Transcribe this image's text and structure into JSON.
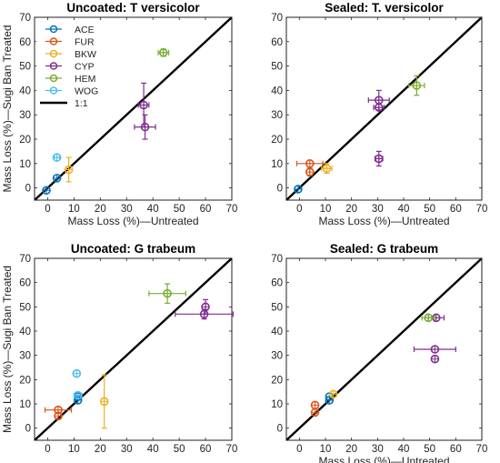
{
  "figure": {
    "ylabel": "Mass Loss (%)—Sugi Ban Treated",
    "xlabel": "Mass Loss (%)—Untreated"
  },
  "series_colors": {
    "ACE": "#0072BD",
    "FUR": "#D95319",
    "BKW": "#EDB120",
    "CYP": "#7E2F8E",
    "HEM": "#77AC30",
    "WOG": "#4DBEEE",
    "1:1": "#000000"
  },
  "legend": [
    "ACE",
    "FUR",
    "BKW",
    "CYP",
    "HEM",
    "WOG",
    "1:1"
  ],
  "chart_data": [
    {
      "type": "scatter",
      "title": "Uncoated: T versicolor",
      "xlim": [
        -5,
        70
      ],
      "ylim": [
        -5,
        70
      ],
      "xticks": [
        0,
        10,
        20,
        30,
        40,
        50,
        60,
        70
      ],
      "yticks": [
        0,
        10,
        20,
        30,
        40,
        50,
        60,
        70
      ],
      "reference_line": "1:1",
      "show_legend": true,
      "show_ylabel": true,
      "show_xlabel": true,
      "series": [
        {
          "name": "ACE",
          "points": [
            {
              "x": -0.5,
              "y": -1
            },
            {
              "x": 3.5,
              "y": 4
            }
          ]
        },
        {
          "name": "FUR",
          "points": []
        },
        {
          "name": "BKW",
          "points": [
            {
              "x": 8,
              "y": 7.5,
              "yerr": 5
            }
          ]
        },
        {
          "name": "CYP",
          "points": [
            {
              "x": 36.5,
              "y": 34,
              "xerr": 2,
              "yerr": 9
            },
            {
              "x": 37,
              "y": 25,
              "xerr": 4,
              "yerr": 5
            }
          ]
        },
        {
          "name": "HEM",
          "points": [
            {
              "x": 44,
              "y": 55.5,
              "xerr": 2,
              "yerr": 1.5
            }
          ]
        },
        {
          "name": "WOG",
          "points": [
            {
              "x": 3.5,
              "y": 12.5,
              "xerr": 1
            }
          ]
        }
      ]
    },
    {
      "type": "scatter",
      "title": "Sealed: T. versicolor",
      "xlim": [
        -5,
        70
      ],
      "ylim": [
        -5,
        70
      ],
      "xticks": [
        0,
        10,
        20,
        30,
        40,
        50,
        60,
        70
      ],
      "yticks": [
        0,
        10,
        20,
        30,
        40,
        50,
        60,
        70
      ],
      "reference_line": "1:1",
      "show_legend": false,
      "show_ylabel": false,
      "show_xlabel": true,
      "series": [
        {
          "name": "ACE",
          "points": [
            {
              "x": -0.5,
              "y": -0.5
            }
          ]
        },
        {
          "name": "FUR",
          "points": [
            {
              "x": 4,
              "y": 10,
              "xerr": 5
            },
            {
              "x": 4,
              "y": 6.5,
              "yerr": 1.5
            }
          ]
        },
        {
          "name": "BKW",
          "points": [
            {
              "x": 10.5,
              "y": 8,
              "xerr": 2,
              "yerr": 2
            }
          ]
        },
        {
          "name": "CYP",
          "points": [
            {
              "x": 30.5,
              "y": 36,
              "xerr": 4,
              "yerr": 4
            },
            {
              "x": 30.5,
              "y": 33,
              "xerr": 2
            },
            {
              "x": 30.5,
              "y": 12,
              "xerr": 1.5,
              "yerr": 3
            }
          ]
        },
        {
          "name": "HEM",
          "points": [
            {
              "x": 45,
              "y": 42,
              "xerr": 3,
              "yerr": 4
            }
          ]
        },
        {
          "name": "WOG",
          "points": []
        }
      ]
    },
    {
      "type": "scatter",
      "title": "Uncoated: G trabeum",
      "xlim": [
        -5,
        70
      ],
      "ylim": [
        -5,
        70
      ],
      "xticks": [
        0,
        10,
        20,
        30,
        40,
        50,
        60,
        70
      ],
      "yticks": [
        0,
        10,
        20,
        30,
        40,
        50,
        60,
        70
      ],
      "reference_line": "1:1",
      "show_legend": false,
      "show_ylabel": true,
      "show_xlabel": false,
      "series": [
        {
          "name": "ACE",
          "points": [
            {
              "x": 11.5,
              "y": 11.5
            },
            {
              "x": 11.5,
              "y": 13
            }
          ]
        },
        {
          "name": "FUR",
          "points": [
            {
              "x": 4,
              "y": 7.5,
              "xerr": 5
            },
            {
              "x": 4,
              "y": 5
            }
          ]
        },
        {
          "name": "BKW",
          "points": [
            {
              "x": 21.5,
              "y": 11,
              "yerr": 11
            }
          ]
        },
        {
          "name": "CYP",
          "points": [
            {
              "x": 60,
              "y": 50,
              "yerr": 3
            },
            {
              "x": 59.5,
              "y": 47,
              "xerr": 11,
              "yerr": 2
            }
          ]
        },
        {
          "name": "HEM",
          "points": [
            {
              "x": 45.5,
              "y": 55.5,
              "xerr": 7,
              "yerr": 4
            }
          ]
        },
        {
          "name": "WOG",
          "points": [
            {
              "x": 11,
              "y": 22.5
            },
            {
              "x": 11.5,
              "y": 13.5,
              "xerr": 1.5
            }
          ]
        }
      ]
    },
    {
      "type": "scatter",
      "title": "Sealed: G trabeum",
      "xlim": [
        -5,
        70
      ],
      "ylim": [
        -5,
        70
      ],
      "xticks": [
        0,
        10,
        20,
        30,
        40,
        50,
        60,
        70
      ],
      "yticks": [
        0,
        10,
        20,
        30,
        40,
        50,
        60,
        70
      ],
      "reference_line": "1:1",
      "show_legend": false,
      "show_ylabel": false,
      "show_xlabel": true,
      "series": [
        {
          "name": "ACE",
          "points": [
            {
              "x": 11.5,
              "y": 11.5
            },
            {
              "x": 11.5,
              "y": 13
            }
          ]
        },
        {
          "name": "FUR",
          "points": [
            {
              "x": 6,
              "y": 9.5
            },
            {
              "x": 6,
              "y": 6.5
            }
          ]
        },
        {
          "name": "BKW",
          "points": [
            {
              "x": 13,
              "y": 14
            }
          ]
        },
        {
          "name": "CYP",
          "points": [
            {
              "x": 52.5,
              "y": 45.5,
              "xerr": 3
            },
            {
              "x": 52,
              "y": 32.5,
              "xerr": 8
            },
            {
              "x": 52,
              "y": 28.5
            }
          ]
        },
        {
          "name": "HEM",
          "points": [
            {
              "x": 49.5,
              "y": 45.5,
              "xerr": 2.5
            }
          ]
        },
        {
          "name": "WOG",
          "points": []
        }
      ]
    }
  ]
}
